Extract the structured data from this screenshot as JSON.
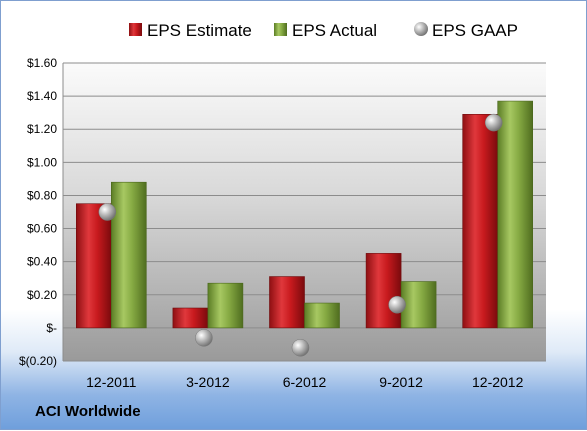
{
  "footer": {
    "company": "ACI Worldwide"
  },
  "chart_data": {
    "type": "bar",
    "categories": [
      "12-2011",
      "3-2012",
      "6-2012",
      "9-2012",
      "12-2012"
    ],
    "series": [
      {
        "name": "EPS Estimate",
        "type": "bar",
        "color": "#c0181c",
        "values": [
          0.75,
          0.12,
          0.31,
          0.45,
          1.29
        ]
      },
      {
        "name": "EPS Actual",
        "type": "bar",
        "color": "#7ea33a",
        "values": [
          0.88,
          0.27,
          0.15,
          0.28,
          1.37
        ]
      },
      {
        "name": "EPS GAAP",
        "type": "scatter",
        "color": "#a6a6a6",
        "values": [
          0.7,
          -0.06,
          -0.12,
          0.14,
          1.24
        ]
      }
    ],
    "ylim": [
      -0.2,
      1.6
    ],
    "yticks": [
      -0.2,
      0,
      0.2,
      0.4,
      0.6,
      0.8,
      1.0,
      1.2,
      1.4,
      1.6
    ],
    "ytick_labels": [
      "$(0.20)",
      "$-",
      "$0.20",
      "$0.40",
      "$0.60",
      "$0.80",
      "$1.00",
      "$1.20",
      "$1.40",
      "$1.60"
    ],
    "grid": true,
    "legend_position": "top"
  }
}
